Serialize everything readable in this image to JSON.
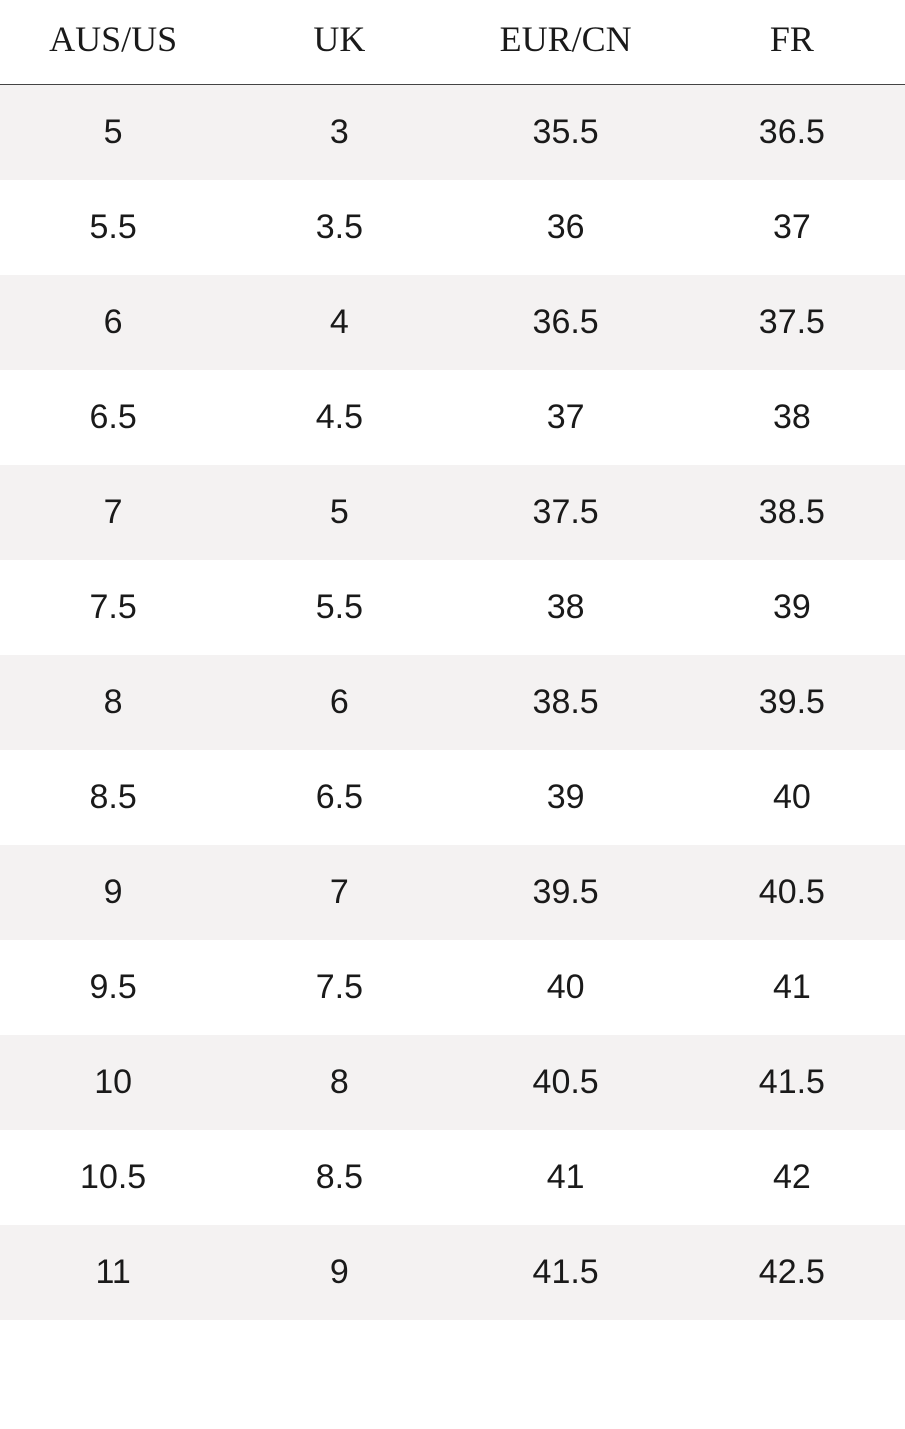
{
  "table": {
    "type": "table",
    "columns": [
      "AUS/US",
      "UK",
      "EUR/CN",
      "FR"
    ],
    "rows": [
      [
        "5",
        "3",
        "35.5",
        "36.5"
      ],
      [
        "5.5",
        "3.5",
        "36",
        "37"
      ],
      [
        "6",
        "4",
        "36.5",
        "37.5"
      ],
      [
        "6.5",
        "4.5",
        "37",
        "38"
      ],
      [
        "7",
        "5",
        "37.5",
        "38.5"
      ],
      [
        "7.5",
        "5.5",
        "38",
        "39"
      ],
      [
        "8",
        "6",
        "38.5",
        "39.5"
      ],
      [
        "8.5",
        "6.5",
        "39",
        "40"
      ],
      [
        "9",
        "7",
        "39.5",
        "40.5"
      ],
      [
        "9.5",
        "7.5",
        "40",
        "41"
      ],
      [
        "10",
        "8",
        "40.5",
        "41.5"
      ],
      [
        "10.5",
        "8.5",
        "41",
        "42"
      ],
      [
        "11",
        "9",
        "41.5",
        "42.5"
      ]
    ],
    "header_font_family": "Georgia, serif",
    "header_fontsize": 36,
    "body_font_family": "Arial, sans-serif",
    "body_fontsize": 34,
    "text_color": "#1a1a1a",
    "header_border_color": "#444444",
    "row_alt_bg": "#f4f2f2",
    "row_bg": "#ffffff",
    "col_count": 4
  }
}
